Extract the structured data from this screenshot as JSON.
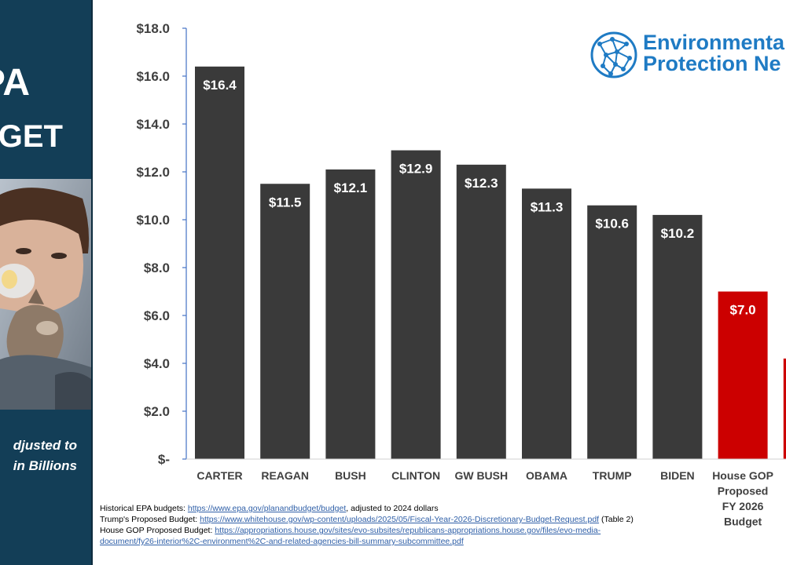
{
  "sidebar": {
    "title_line1": "PA",
    "title_line2": "GET",
    "note_line1": "djusted to",
    "note_line2": "in Billions"
  },
  "logo": {
    "line1": "Environmenta",
    "line2": "Protection Ne"
  },
  "chart_data": {
    "type": "bar",
    "categories": [
      "CARTER",
      "REAGAN",
      "BUSH",
      "CLINTON",
      "GW BUSH",
      "OBAMA",
      "TRUMP",
      "BIDEN",
      "House GOP Proposed FY 2026 Budget",
      ""
    ],
    "values": [
      16.4,
      11.5,
      12.1,
      12.9,
      12.3,
      11.3,
      10.6,
      10.2,
      7.0,
      4.2
    ],
    "data_labels": [
      "$16.4",
      "$11.5",
      "$12.1",
      "$12.9",
      "$12.3",
      "$11.3",
      "$10.6",
      "$10.2",
      "$7.0",
      ""
    ],
    "colors": [
      "#3a3a3a",
      "#3a3a3a",
      "#3a3a3a",
      "#3a3a3a",
      "#3a3a3a",
      "#3a3a3a",
      "#3a3a3a",
      "#3a3a3a",
      "#cc0000",
      "#cc0000"
    ],
    "ylim": [
      0,
      18
    ],
    "yticks": [
      0,
      2,
      4,
      6,
      8,
      10,
      12,
      14,
      16,
      18
    ],
    "ytick_labels": [
      "$-",
      "$2.0",
      "$4.0",
      "$6.0",
      "$8.0",
      "$10.0",
      "$12.0",
      "$14.0",
      "$16.0",
      "$18.0"
    ],
    "grid": false,
    "xlabel": "",
    "ylabel": "",
    "title": ""
  },
  "sources": {
    "l1_prefix": "Historical EPA budgets:  ",
    "l1_link": "https://www.epa.gov/planandbudget/budget",
    "l1_suffix": ", adjusted to 2024 dollars",
    "l2_prefix": "Trump's Proposed Budget: ",
    "l2_link": "https://www.whitehouse.gov/wp-content/uploads/2025/05/Fiscal-Year-2026-Discretionary-Budget-Request.pdf",
    "l2_suffix": " (Table 2)",
    "l3_prefix": "House GOP Proposed Budget: ",
    "l3_link": "https://appropriations.house.gov/sites/evo-subsites/republicans-appropriations.house.gov/files/evo-media-",
    "l4_link": "document/fy26-interior%2C-environment%2C-and-related-agencies-bill-summary-subcommittee.pdf"
  },
  "icons": {
    "logo": "network-globe-icon",
    "photo": "child-with-inhaler-photo"
  }
}
